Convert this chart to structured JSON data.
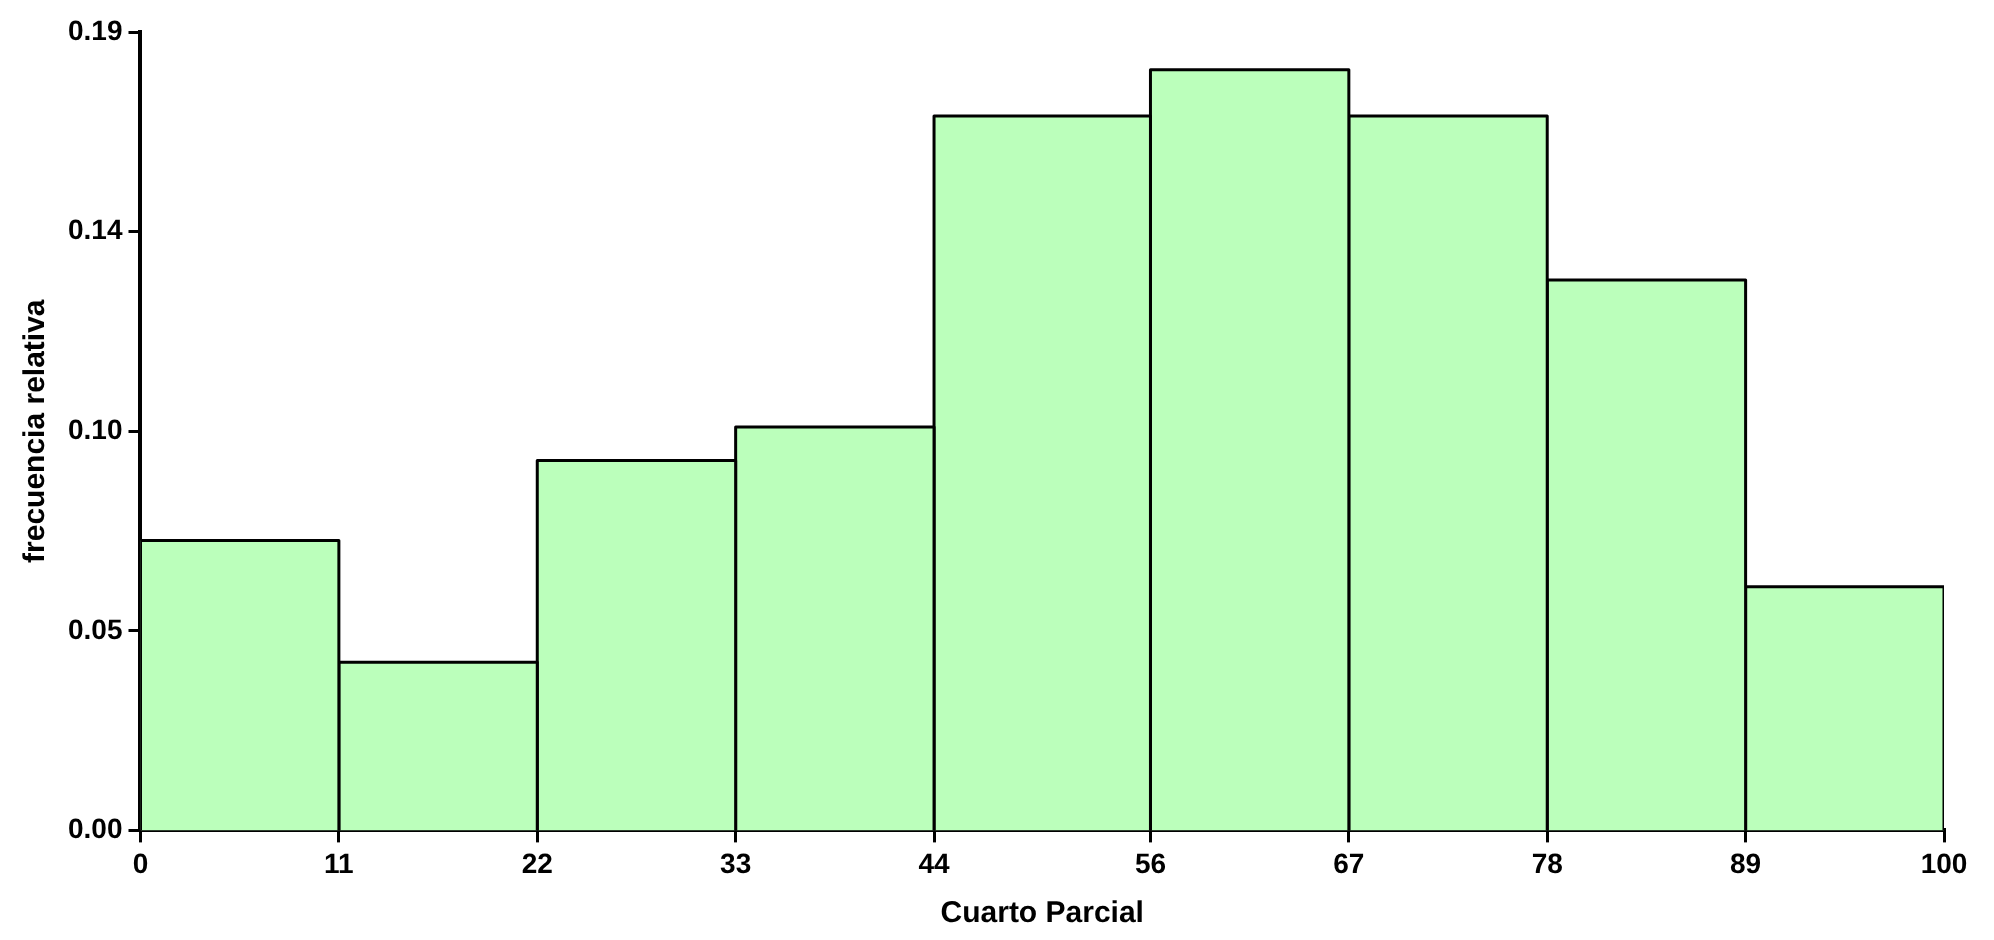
{
  "chart_data": {
    "type": "histogram",
    "xlabel": "Cuarto Parcial",
    "ylabel": "frecuencia relativa",
    "bins": [
      0,
      11,
      22,
      33,
      44,
      56,
      67,
      78,
      89,
      100
    ],
    "values": [
      0.069,
      0.04,
      0.088,
      0.096,
      0.17,
      0.181,
      0.17,
      0.131,
      0.058
    ],
    "color": "#bbffbb",
    "xlim": [
      0,
      100
    ],
    "xticks": [
      0,
      11,
      22,
      33,
      44,
      56,
      67,
      78,
      89,
      100
    ],
    "ylim": [
      0,
      0.19
    ],
    "yticks": [
      {
        "value": 0,
        "label": "0.00"
      },
      {
        "value": 0.0475,
        "label": "0.05"
      },
      {
        "value": 0.095,
        "label": "0.10"
      },
      {
        "value": 0.1425,
        "label": "0.14"
      },
      {
        "value": 0.19,
        "label": "0.19"
      }
    ],
    "grid": false,
    "legend": false
  }
}
